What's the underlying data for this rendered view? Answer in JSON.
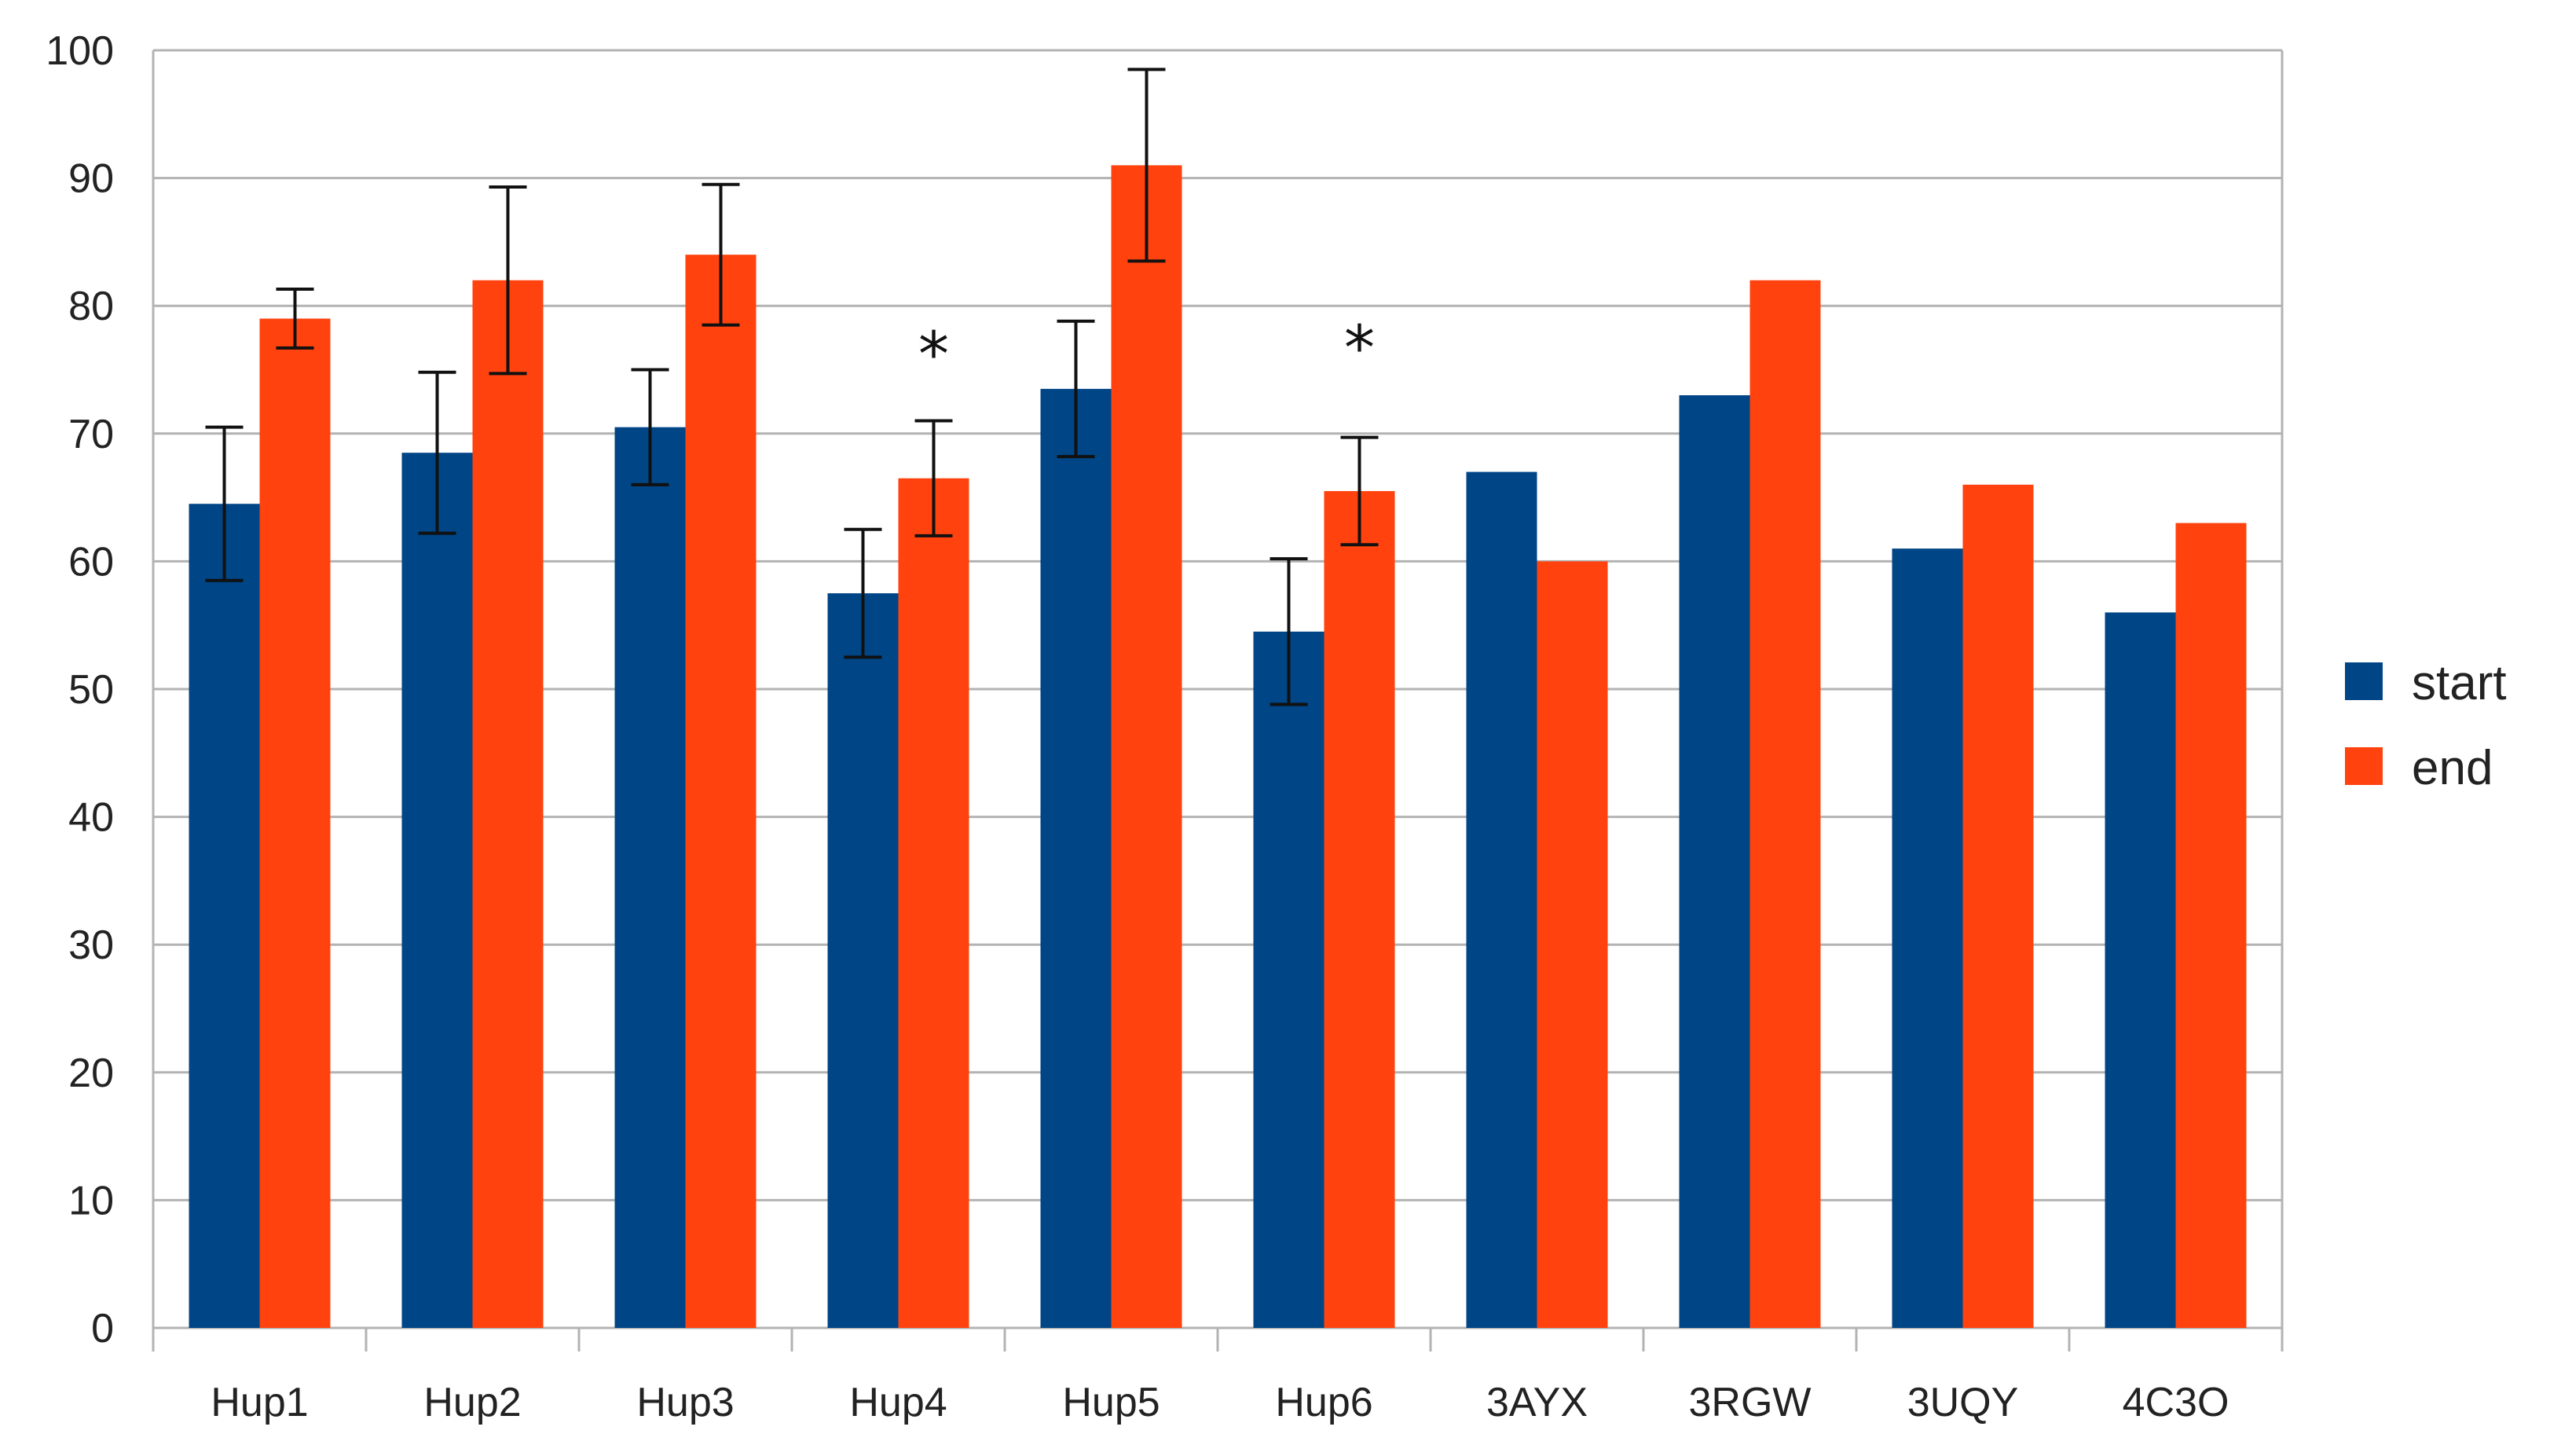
{
  "chart_data": {
    "type": "bar",
    "categories": [
      "Hup1",
      "Hup2",
      "Hup3",
      "Hup4",
      "Hup5",
      "Hup6",
      "3AYX",
      "3RGW",
      "3UQY",
      "4C3O"
    ],
    "series": [
      {
        "name": "start",
        "color": "#004586",
        "values": [
          64.5,
          68.5,
          70.5,
          57.5,
          73.5,
          54.5,
          67,
          73,
          61,
          56
        ],
        "error": [
          6,
          6.3,
          4.5,
          5,
          5.3,
          5.7,
          null,
          null,
          null,
          null
        ]
      },
      {
        "name": "end",
        "color": "#ff420e",
        "values": [
          79,
          82,
          84,
          66.5,
          91,
          65.5,
          60,
          82,
          66,
          63
        ],
        "error": [
          2.3,
          7.3,
          5.5,
          4.5,
          7.5,
          4.2,
          null,
          null,
          null,
          null
        ]
      }
    ],
    "ylim": [
      0,
      100
    ],
    "yticks": [
      "0",
      "10",
      "20",
      "30",
      "40",
      "50",
      "60",
      "70",
      "80",
      "90",
      "100"
    ],
    "grid": true,
    "legend_position": "right",
    "annotations": [
      {
        "category": "Hup4",
        "text": "*",
        "y": 77
      },
      {
        "category": "Hup6",
        "text": "*",
        "y": 77.5
      }
    ]
  }
}
